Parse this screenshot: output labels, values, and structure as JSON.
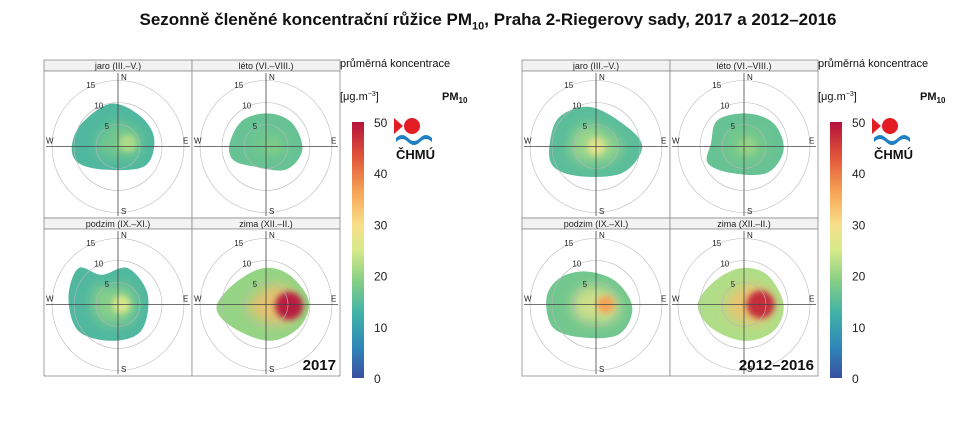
{
  "title_main": "Sezonně členěné koncentrační růžice PM",
  "title_sub": "10",
  "title_rest": ", Praha 2-Riegerovy sady, 2017 a 2012–2016",
  "compass": {
    "north": "N",
    "south": "S",
    "east": "E",
    "west": "W"
  },
  "ring_labels": [
    "5",
    "10",
    "15"
  ],
  "legend": {
    "title": "průměrná koncentrace",
    "unit": "[μg.m",
    "unit_sup": "−3",
    "unit_end": "]",
    "pollutant": "PM",
    "pollutant_sub": "10",
    "ticks": [
      "0",
      "10",
      "20",
      "30",
      "40",
      "50"
    ],
    "logo_text": "ČHMÚ",
    "colors": [
      "#3a4fa0",
      "#2f86b8",
      "#3fb1a8",
      "#86cf84",
      "#d7ea8a",
      "#f9de8a",
      "#f7a857",
      "#e2573a",
      "#b5123c"
    ]
  },
  "chart_data": [
    {
      "type": "polar-heatmap",
      "period": "2017",
      "seasons": [
        {
          "label": "jaro  (III.–V.)",
          "mean_level": 14,
          "max_level": 22
        },
        {
          "label": "léto  (VI.–VIII.)",
          "mean_level": 16,
          "max_level": 18
        },
        {
          "label": "podzim  (IX.–XI.)",
          "mean_level": 14,
          "max_level": 26
        },
        {
          "label": "zima  (XII.–II.)",
          "mean_level": 20,
          "max_level": 50
        }
      ],
      "rlim": [
        0,
        20
      ],
      "color_range": [
        0,
        50
      ]
    },
    {
      "type": "polar-heatmap",
      "period": "2012–2016",
      "seasons": [
        {
          "label": "jaro  (III.–V.)",
          "mean_level": 15,
          "max_level": 28
        },
        {
          "label": "léto  (VI.–VIII.)",
          "mean_level": 16,
          "max_level": 20
        },
        {
          "label": "podzim  (IX.–XI.)",
          "mean_level": 17,
          "max_level": 38
        },
        {
          "label": "zima  (XII.–II.)",
          "mean_level": 22,
          "max_level": 48
        }
      ],
      "rlim": [
        0,
        20
      ],
      "color_range": [
        0,
        50
      ]
    }
  ]
}
